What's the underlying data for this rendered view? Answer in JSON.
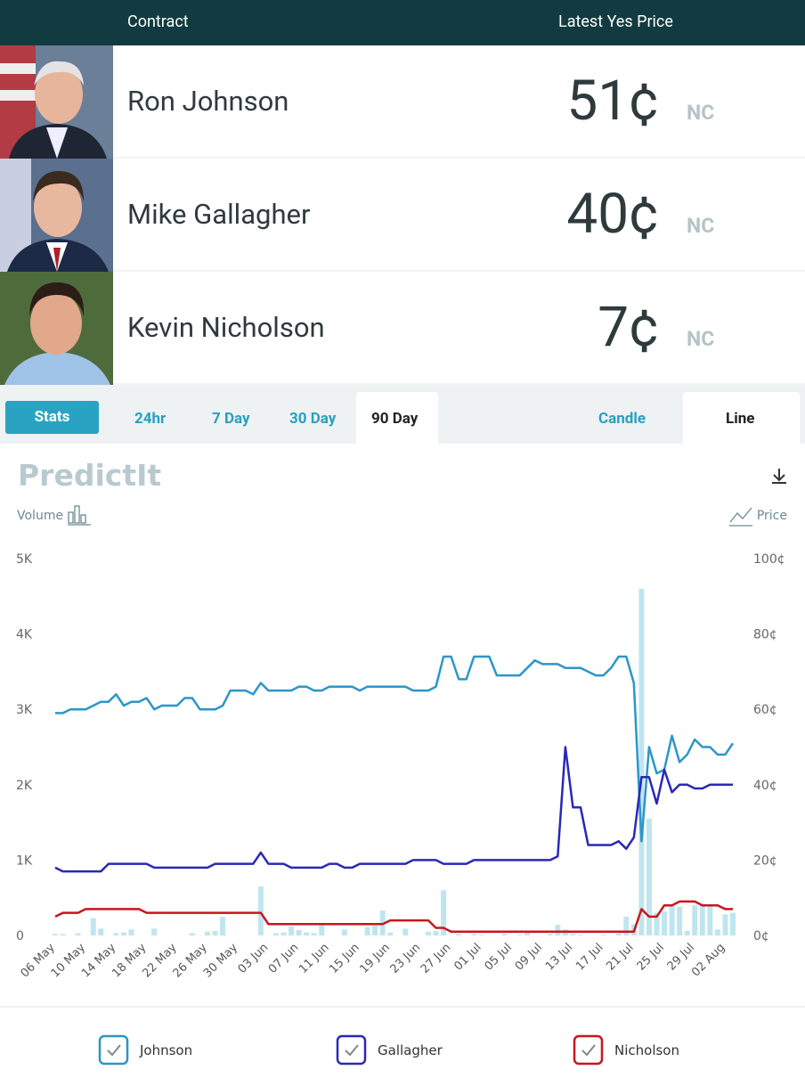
{
  "header": {
    "contract": "Contract",
    "price": "Latest Yes Price"
  },
  "contracts": [
    {
      "name": "Ron Johnson",
      "price": "51¢",
      "change": "NC"
    },
    {
      "name": "Mike Gallagher",
      "price": "40¢",
      "change": "NC"
    },
    {
      "name": "Kevin Nicholson",
      "price": "7¢",
      "change": "NC"
    }
  ],
  "tabs": {
    "stats": "Stats",
    "ranges": [
      "24hr",
      "7 Day",
      "30 Day",
      "90 Day"
    ],
    "styles": [
      "Candle",
      "Line"
    ]
  },
  "logo": "PredictIt",
  "chart_data": {
    "type": "line",
    "ylabel": "Volume",
    "y2label": "Price",
    "categories": [
      "06 May",
      null,
      null,
      null,
      "10 May",
      null,
      null,
      null,
      "14 May",
      null,
      null,
      null,
      "18 May",
      null,
      null,
      null,
      "22 May",
      null,
      null,
      null,
      "26 May",
      null,
      null,
      null,
      "30 May",
      null,
      null,
      null,
      "03 Jun",
      null,
      null,
      null,
      "07 Jun",
      null,
      null,
      null,
      "11 Jun",
      null,
      null,
      null,
      "15 Jun",
      null,
      null,
      null,
      "19 Jun",
      null,
      null,
      null,
      "23 Jun",
      null,
      null,
      null,
      "27 Jun",
      null,
      null,
      null,
      "01 Jul",
      null,
      null,
      null,
      "05 Jul",
      null,
      null,
      null,
      "09 Jul",
      null,
      null,
      null,
      "13 Jul",
      null,
      null,
      null,
      "17 Jul",
      null,
      null,
      null,
      "21 Jul",
      null,
      null,
      null,
      "25 Jul",
      null,
      null,
      null,
      "29 Jul",
      null,
      null,
      null,
      "02 Aug",
      null
    ],
    "volume": {
      "color": "#bfe5ef",
      "values": [
        20,
        20,
        0,
        30,
        0,
        230,
        90,
        0,
        30,
        40,
        80,
        0,
        0,
        90,
        0,
        0,
        0,
        0,
        30,
        0,
        50,
        60,
        250,
        0,
        0,
        0,
        0,
        650,
        0,
        30,
        40,
        120,
        70,
        40,
        30,
        150,
        0,
        0,
        80,
        0,
        0,
        110,
        130,
        330,
        40,
        0,
        90,
        0,
        0,
        50,
        60,
        600,
        0,
        20,
        0,
        20,
        10,
        0,
        0,
        20,
        0,
        10,
        40,
        0,
        0,
        20,
        140,
        80,
        20,
        10,
        0,
        0,
        10,
        0,
        30,
        250,
        150,
        4600,
        1550,
        300,
        320,
        400,
        380,
        60,
        400,
        420,
        400,
        80,
        280,
        300
      ]
    },
    "series": [
      {
        "name": "Johnson",
        "color": "#2c96c8",
        "axis": "y2",
        "values": [
          59,
          59,
          60,
          60,
          60,
          61,
          62,
          62,
          64,
          61,
          62,
          62,
          63,
          60,
          61,
          61,
          61,
          63,
          63,
          60,
          60,
          60,
          61,
          65,
          65,
          65,
          64,
          67,
          65,
          65,
          65,
          65,
          66,
          66,
          65,
          65,
          66,
          66,
          66,
          66,
          65,
          66,
          66,
          66,
          66,
          66,
          66,
          65,
          65,
          65,
          66,
          74,
          74,
          68,
          68,
          74,
          74,
          74,
          69,
          69,
          69,
          69,
          71,
          73,
          72,
          72,
          72,
          71,
          71,
          71,
          70,
          69,
          69,
          71,
          74,
          74,
          67,
          25,
          50,
          43,
          44,
          53,
          46,
          48,
          52,
          50,
          50,
          48,
          48,
          51
        ]
      },
      {
        "name": "Gallagher",
        "color": "#2a28b8",
        "axis": "y2",
        "values": [
          18,
          17,
          17,
          17,
          17,
          17,
          17,
          19,
          19,
          19,
          19,
          19,
          19,
          18,
          18,
          18,
          18,
          18,
          18,
          18,
          18,
          19,
          19,
          19,
          19,
          19,
          19,
          22,
          19,
          19,
          19,
          18,
          18,
          18,
          18,
          18,
          19,
          19,
          18,
          18,
          19,
          19,
          19,
          19,
          19,
          19,
          19,
          20,
          20,
          20,
          20,
          19,
          19,
          19,
          19,
          20,
          20,
          20,
          20,
          20,
          20,
          20,
          20,
          20,
          20,
          20,
          21,
          50,
          34,
          34,
          24,
          24,
          24,
          24,
          25,
          23,
          26,
          42,
          42,
          35,
          44,
          38,
          40,
          40,
          39,
          39,
          40,
          40,
          40,
          40
        ]
      },
      {
        "name": "Nicholson",
        "color": "#c8161d",
        "axis": "y2",
        "values": [
          5,
          6,
          6,
          6,
          7,
          7,
          7,
          7,
          7,
          7,
          7,
          7,
          6,
          6,
          6,
          6,
          6,
          6,
          6,
          6,
          6,
          6,
          6,
          6,
          6,
          6,
          6,
          6,
          3,
          3,
          3,
          3,
          3,
          3,
          3,
          3,
          3,
          3,
          3,
          3,
          3,
          3,
          3,
          3,
          4,
          4,
          4,
          4,
          4,
          4,
          2,
          2,
          1,
          1,
          1,
          1,
          1,
          1,
          1,
          1,
          1,
          1,
          1,
          1,
          1,
          1,
          1,
          1,
          1,
          1,
          1,
          1,
          1,
          1,
          1,
          1,
          1,
          7,
          5,
          5,
          8,
          8,
          9,
          9,
          9,
          8,
          8,
          8,
          7,
          7
        ]
      }
    ],
    "ylim": [
      0,
      5000
    ],
    "yticks": [
      0,
      {
        "value": 1000,
        "label": "1K"
      },
      {
        "value": 2000,
        "label": "2K"
      },
      {
        "value": 3000,
        "label": "3K"
      },
      {
        "value": 4000,
        "label": "4K"
      },
      {
        "value": 5000,
        "label": "5K"
      }
    ],
    "y2lim": [
      0,
      100
    ],
    "y2ticks": [
      {
        "value": 0,
        "label": "0¢"
      },
      {
        "value": 20,
        "label": "20¢"
      },
      {
        "value": 40,
        "label": "40¢"
      },
      {
        "value": 60,
        "label": "60¢"
      },
      {
        "value": 80,
        "label": "80¢"
      },
      {
        "value": 100,
        "label": "100¢"
      }
    ],
    "grid": false
  }
}
